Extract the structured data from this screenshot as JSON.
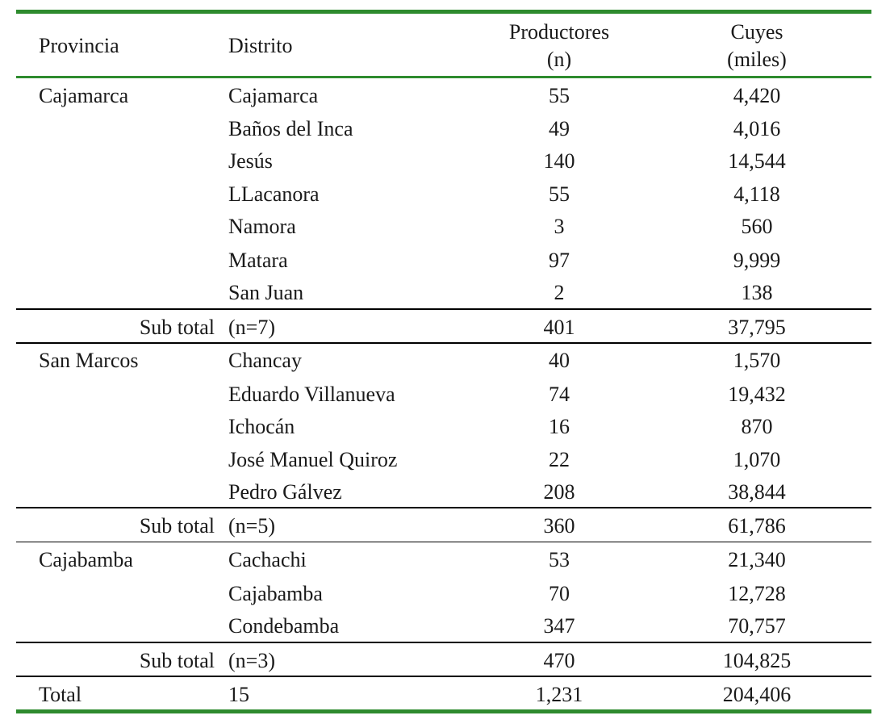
{
  "table": {
    "headers": {
      "provincia": "Provincia",
      "distrito": "Distrito",
      "productores_line1": "Productores",
      "productores_line2": "(n)",
      "cuyes_line1": "Cuyes",
      "cuyes_line2": "(miles)"
    },
    "groups": [
      {
        "provincia": "Cajamarca",
        "rows": [
          {
            "distrito": "Cajamarca",
            "productores": "55",
            "cuyes": "4,420"
          },
          {
            "distrito": "Baños del Inca",
            "productores": "49",
            "cuyes": "4,016"
          },
          {
            "distrito": "Jesús",
            "productores": "140",
            "cuyes": "14,544"
          },
          {
            "distrito": "LLacanora",
            "productores": "55",
            "cuyes": "4,118"
          },
          {
            "distrito": "Namora",
            "productores": "3",
            "cuyes": "560"
          },
          {
            "distrito": "Matara",
            "productores": "97",
            "cuyes": "9,999"
          },
          {
            "distrito": "San Juan",
            "productores": "2",
            "cuyes": "138"
          }
        ],
        "subtotal": {
          "label": "Sub total",
          "n": "(n=7)",
          "productores": "401",
          "cuyes": "37,795"
        }
      },
      {
        "provincia": "San Marcos",
        "rows": [
          {
            "distrito": "Chancay",
            "productores": "40",
            "cuyes": "1,570"
          },
          {
            "distrito": "Eduardo Villanueva",
            "productores": "74",
            "cuyes": "19,432"
          },
          {
            "distrito": "Ichocán",
            "productores": "16",
            "cuyes": "870"
          },
          {
            "distrito": "José Manuel Quiroz",
            "productores": "22",
            "cuyes": "1,070"
          },
          {
            "distrito": "Pedro Gálvez",
            "productores": "208",
            "cuyes": "38,844"
          }
        ],
        "subtotal": {
          "label": "Sub total",
          "n": "(n=5)",
          "productores": "360",
          "cuyes": "61,786"
        }
      },
      {
        "provincia": "Cajabamba",
        "rows": [
          {
            "distrito": "Cachachi",
            "productores": "53",
            "cuyes": "21,340"
          },
          {
            "distrito": "Cajabamba",
            "productores": "70",
            "cuyes": "12,728"
          },
          {
            "distrito": "Condebamba",
            "productores": "347",
            "cuyes": "70,757"
          }
        ],
        "subtotal": {
          "label": "Sub total",
          "n": "(n=3)",
          "productores": "470",
          "cuyes": "104,825"
        }
      }
    ],
    "total": {
      "label": "Total",
      "distrito": "15",
      "productores": "1,231",
      "cuyes": "204,406"
    }
  },
  "colors": {
    "rule_green": "#2e8b2e",
    "rule_black": "#000000",
    "text": "#1a1a1a"
  }
}
